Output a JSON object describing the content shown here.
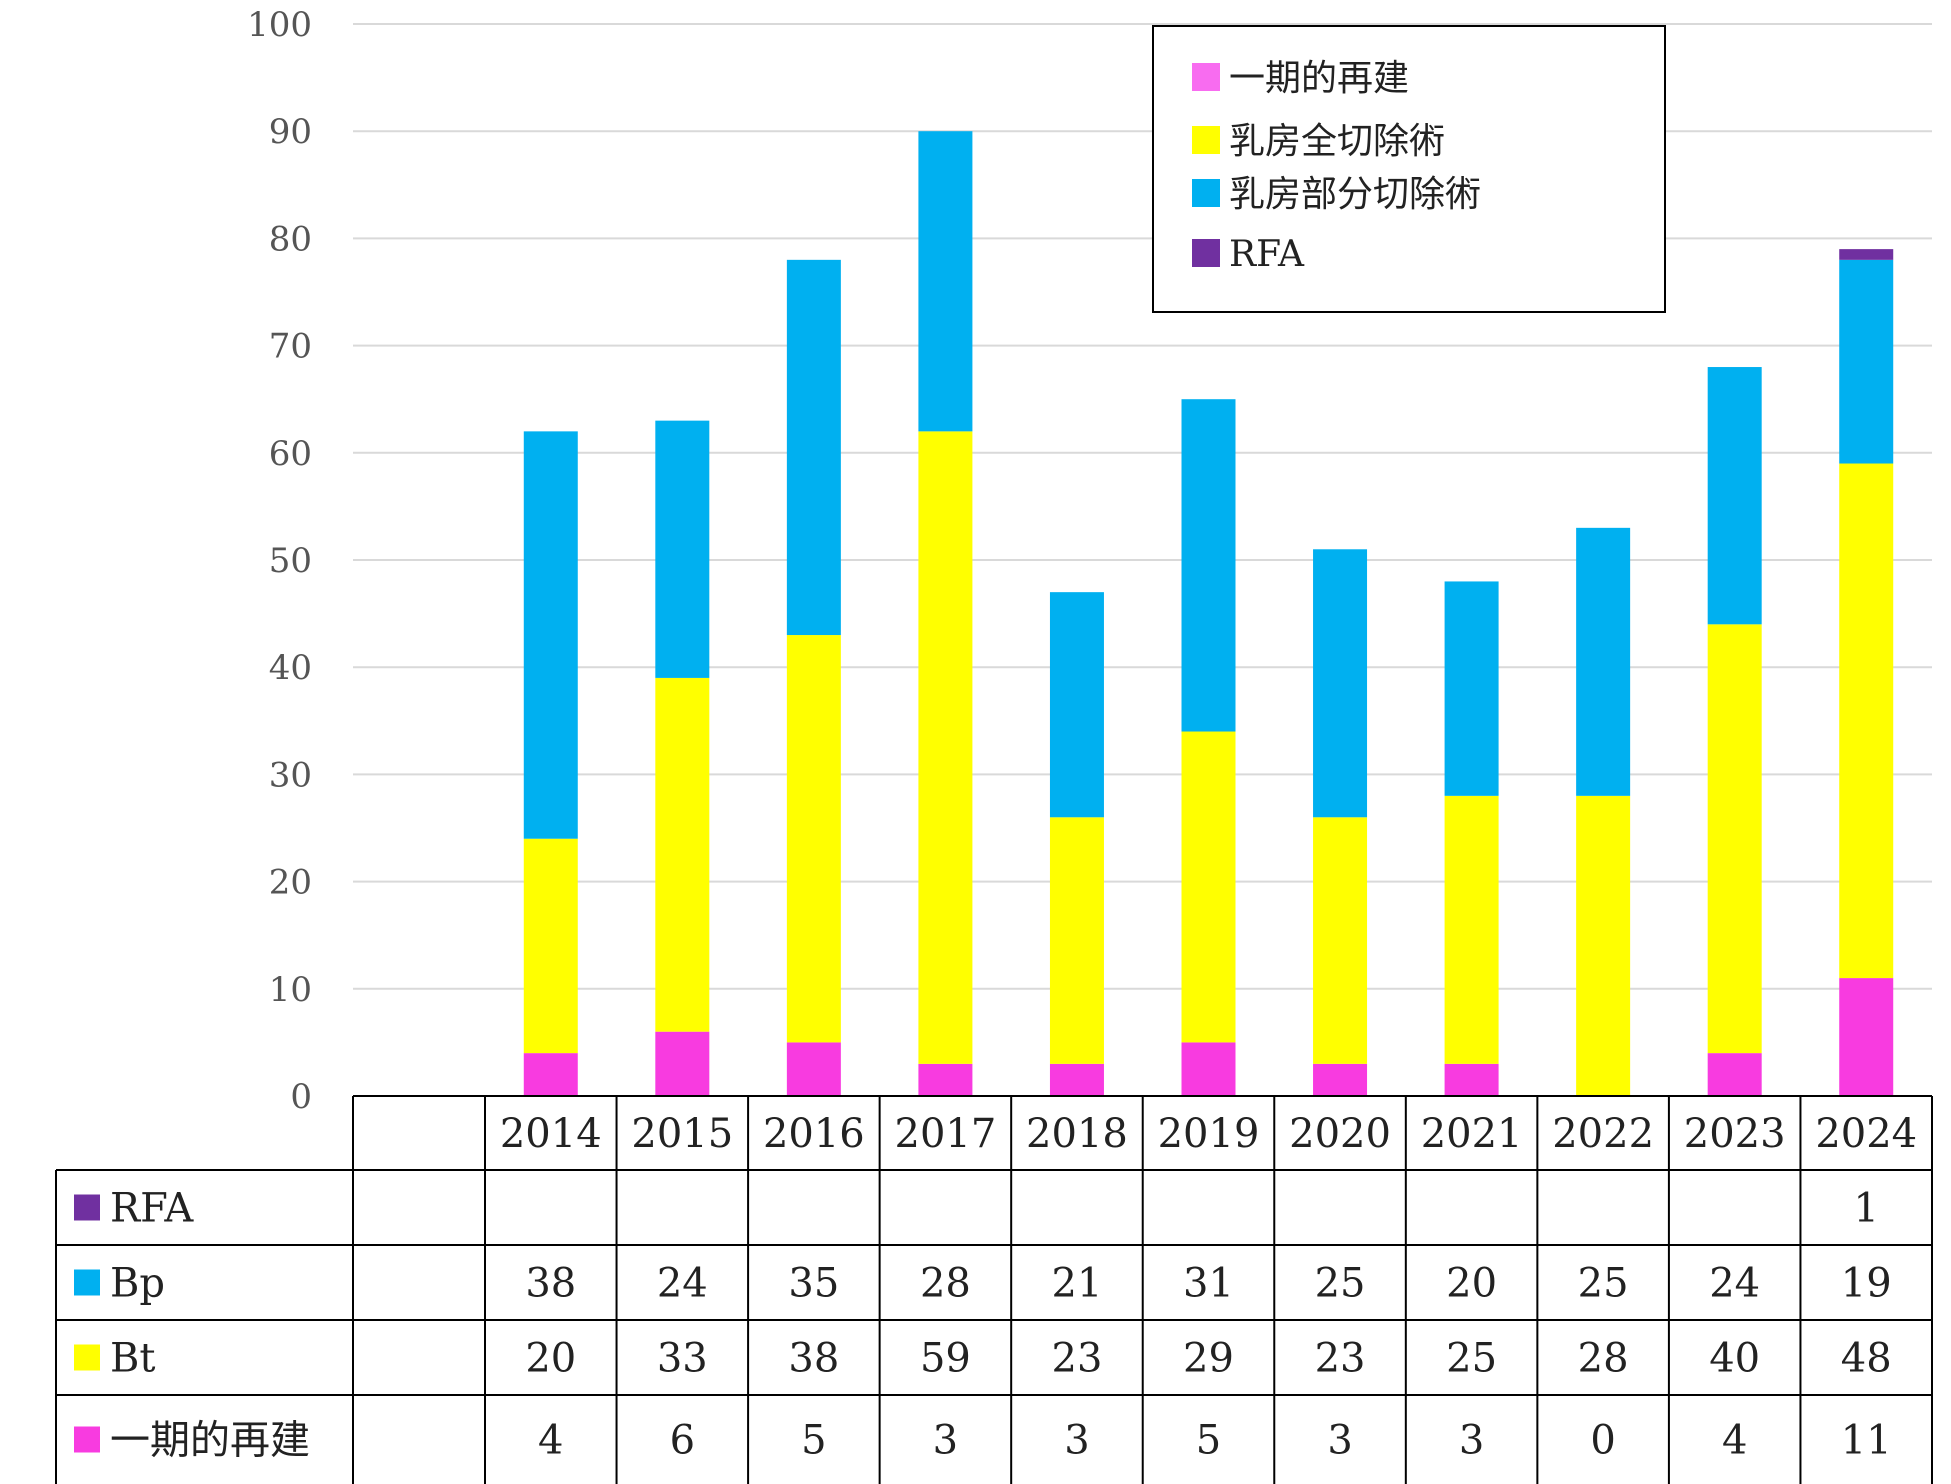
{
  "chart_data": {
    "type": "bar",
    "stacked": true,
    "categories": [
      "2014",
      "2015",
      "2016",
      "2017",
      "2018",
      "2019",
      "2020",
      "2021",
      "2022",
      "2023",
      "2024"
    ],
    "ylim": [
      0,
      100
    ],
    "yticks": [
      "0",
      "10",
      "20",
      "30",
      "40",
      "50",
      "60",
      "70",
      "80",
      "90",
      "100"
    ],
    "grid": true,
    "legend_position": "top-right",
    "series": [
      {
        "name": "一期的再建",
        "table_label": "一期的再建",
        "color": "#F83BE0",
        "legend_color": "#F86CF0",
        "values": [
          4,
          6,
          5,
          3,
          3,
          5,
          3,
          3,
          0,
          4,
          11
        ],
        "table_values": [
          "4",
          "6",
          "5",
          "3",
          "3",
          "5",
          "3",
          "3",
          "0",
          "4",
          "11"
        ]
      },
      {
        "name": "乳房全切除術",
        "table_label": "Bt",
        "color": "#FFFF00",
        "legend_color": "#FFFF00",
        "values": [
          20,
          33,
          38,
          59,
          23,
          29,
          23,
          25,
          28,
          40,
          48
        ],
        "table_values": [
          "20",
          "33",
          "38",
          "59",
          "23",
          "29",
          "23",
          "25",
          "28",
          "40",
          "48"
        ]
      },
      {
        "name": "乳房部分切除術",
        "table_label": "Bp",
        "color": "#00B0F0",
        "legend_color": "#00B0F0",
        "values": [
          38,
          24,
          35,
          28,
          21,
          31,
          25,
          20,
          25,
          24,
          19
        ],
        "table_values": [
          "38",
          "24",
          "35",
          "28",
          "21",
          "31",
          "25",
          "20",
          "25",
          "24",
          "19"
        ]
      },
      {
        "name": "RFA",
        "table_label": "RFA",
        "color": "#7030A0",
        "legend_color": "#7030A0",
        "values": [
          0,
          0,
          0,
          0,
          0,
          0,
          0,
          0,
          0,
          0,
          1
        ],
        "table_values": [
          "",
          "",
          "",
          "",
          "",
          "",
          "",
          "",
          "",
          "",
          "1"
        ]
      }
    ],
    "legend_order": [
      "一期的再建",
      "乳房全切除術",
      "乳房部分切除術",
      "RFA"
    ],
    "table_row_order": [
      "RFA",
      "Bp",
      "Bt",
      "一期的再建"
    ]
  }
}
